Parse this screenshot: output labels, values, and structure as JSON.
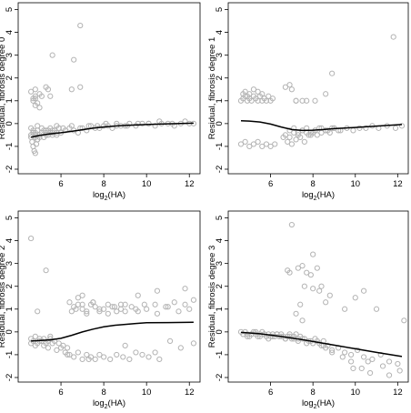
{
  "chart_data": [
    {
      "type": "scatter",
      "xlabel": "log2(HA)",
      "xlabel_base": "log",
      "xlabel_sub": "2",
      "xlabel_rest": "(HA)",
      "ylabel": "Residual, fibrosis degree 0",
      "xlim": [
        4.0,
        12.5
      ],
      "ylim": [
        -2.2,
        5.3
      ],
      "x_ticks": [
        6,
        8,
        10,
        12
      ],
      "y_ticks": [
        -2,
        -1,
        0,
        1,
        2,
        3,
        4,
        5
      ],
      "point_color": "#b3b3b3",
      "line_color": "#000000",
      "smooth_line": {
        "x": [
          4.6,
          5.0,
          5.5,
          6.0,
          6.5,
          7.0,
          7.5,
          8.0,
          8.5,
          9.0,
          10.0,
          11.0,
          12.2
        ],
        "y": [
          -0.6,
          -0.52,
          -0.45,
          -0.4,
          -0.34,
          -0.27,
          -0.2,
          -0.15,
          -0.11,
          -0.08,
          -0.04,
          -0.01,
          0.02
        ]
      },
      "points": {
        "x": [
          4.6,
          4.65,
          4.7,
          4.75,
          4.8,
          4.85,
          4.9,
          4.6,
          4.7,
          4.8,
          4.9,
          5.0,
          5.1,
          5.2,
          5.3,
          5.4,
          5.5,
          5.6,
          5.7,
          5.8,
          5.9,
          4.7,
          4.8,
          4.9,
          5.0,
          5.3,
          5.4,
          5.6,
          5.8,
          6.0,
          6.2,
          6.4,
          6.6,
          6.8,
          7.0,
          7.2,
          7.4,
          7.6,
          7.8,
          8.0,
          8.2,
          8.4,
          8.6,
          8.8,
          9.0,
          9.2,
          9.5,
          9.8,
          10.1,
          10.4,
          10.7,
          11.0,
          11.3,
          11.6,
          12.0,
          12.2,
          4.6,
          4.7,
          4.8,
          4.9,
          5.1,
          5.3,
          5.5,
          5.8,
          6.1,
          6.5,
          6.9,
          7.3,
          7.7,
          8.1,
          8.6,
          9.1,
          9.6,
          10.1,
          10.6,
          11.2,
          11.8,
          5.2,
          5.6,
          5.9,
          4.6,
          4.8,
          5.0,
          5.4,
          5.5,
          6.5,
          6.9,
          4.7,
          4.8,
          4.8,
          4.9,
          5.0
        ],
        "y": [
          -0.6,
          -0.8,
          -1.0,
          -1.2,
          -1.3,
          -0.9,
          -0.7,
          -0.5,
          -0.4,
          -0.6,
          -0.3,
          -0.5,
          -0.4,
          -0.6,
          -0.5,
          -0.3,
          -0.4,
          -0.5,
          -0.3,
          -0.4,
          -0.2,
          -0.4,
          -0.5,
          -0.7,
          -0.6,
          -0.4,
          -0.5,
          -0.3,
          -0.5,
          -0.4,
          -0.3,
          -0.2,
          -0.3,
          -0.4,
          -0.2,
          -0.3,
          -0.1,
          -0.2,
          -0.2,
          -0.1,
          -0.1,
          -0.2,
          0.0,
          -0.1,
          -0.1,
          0.0,
          -0.1,
          0.0,
          0.0,
          -0.1,
          0.0,
          0.0,
          -0.1,
          0.0,
          0.0,
          0.0,
          -0.2,
          -0.3,
          -0.4,
          -0.1,
          -0.2,
          -0.3,
          -0.2,
          -0.1,
          -0.2,
          -0.1,
          -0.2,
          -0.1,
          -0.1,
          0.0,
          -0.1,
          -0.1,
          0.0,
          0.0,
          0.1,
          0.0,
          0.1,
          -0.3,
          -0.4,
          -0.2,
          1.4,
          1.5,
          1.3,
          1.5,
          1.2,
          1.5,
          1.6,
          1.0,
          0.8,
          1.1,
          0.9,
          0.7
        ],
        "x_extra": [
          5.6,
          6.6,
          6.9,
          5.3,
          5.1,
          4.7,
          4.8
        ],
        "y_extra": [
          3.0,
          2.8,
          4.3,
          1.6,
          1.2,
          1.1,
          1.2
        ]
      }
    },
    {
      "type": "scatter",
      "xlabel": "log2(HA)",
      "xlabel_base": "log",
      "xlabel_sub": "2",
      "xlabel_rest": "(HA)",
      "ylabel": "Residual, fibrosis degree 1",
      "xlim": [
        4.0,
        12.5
      ],
      "ylim": [
        -2.2,
        5.3
      ],
      "x_ticks": [
        6,
        8,
        10,
        12
      ],
      "y_ticks": [
        -2,
        -1,
        0,
        1,
        2,
        3,
        4,
        5
      ],
      "point_color": "#b3b3b3",
      "line_color": "#000000",
      "smooth_line": {
        "x": [
          4.6,
          5.0,
          5.5,
          6.0,
          6.5,
          7.0,
          7.5,
          8.0,
          8.5,
          9.0,
          10.0,
          11.0,
          12.2
        ],
        "y": [
          0.12,
          0.11,
          0.07,
          -0.02,
          -0.15,
          -0.26,
          -0.3,
          -0.29,
          -0.26,
          -0.22,
          -0.17,
          -0.11,
          -0.04
        ]
      },
      "points": {
        "x": [
          4.6,
          4.7,
          4.8,
          4.9,
          5.0,
          5.1,
          5.2,
          5.3,
          5.4,
          5.5,
          5.6,
          5.7,
          5.8,
          5.9,
          6.0,
          6.1,
          4.7,
          4.8,
          4.9,
          5.0,
          5.2,
          5.4,
          5.6,
          4.6,
          4.8,
          5.0,
          5.2,
          5.4,
          5.6,
          5.8,
          6.0,
          6.2,
          6.6,
          6.8,
          7.0,
          7.2,
          7.4,
          7.6,
          7.8,
          8.0,
          8.2,
          8.4,
          8.6,
          8.8,
          9.0,
          9.3,
          9.6,
          9.9,
          10.2,
          10.5,
          10.8,
          11.1,
          11.5,
          11.9,
          12.2,
          6.9,
          7.1,
          7.3,
          7.5,
          7.7,
          7.9,
          8.1,
          8.3,
          8.6,
          8.9,
          9.2,
          6.7,
          6.9,
          7.1,
          7.3,
          7.5,
          7.7,
          7.9,
          8.1,
          8.4,
          8.7,
          9.0,
          7.0,
          7.2,
          8.1,
          8.6,
          6.7,
          6.9,
          7.2,
          8.9,
          11.8,
          7.5,
          7.7
        ],
        "y": [
          1.0,
          1.1,
          1.2,
          1.0,
          1.1,
          1.0,
          1.2,
          1.1,
          1.0,
          1.2,
          1.0,
          1.1,
          1.0,
          1.2,
          1.0,
          1.1,
          1.3,
          1.4,
          1.2,
          1.3,
          1.5,
          1.4,
          1.3,
          -0.9,
          -0.8,
          -1.0,
          -0.9,
          -0.8,
          -1.0,
          -0.9,
          -1.0,
          -0.9,
          -0.6,
          -0.8,
          -0.9,
          -0.7,
          -0.6,
          -0.8,
          -0.5,
          -0.4,
          -0.5,
          -0.4,
          -0.3,
          -0.4,
          -0.2,
          -0.3,
          -0.2,
          -0.3,
          -0.2,
          -0.2,
          -0.1,
          -0.2,
          -0.1,
          -0.2,
          -0.1,
          -0.3,
          -0.2,
          -0.4,
          -0.3,
          -0.2,
          -0.4,
          -0.3,
          -0.2,
          -0.3,
          -0.2,
          -0.3,
          -0.5,
          -0.6,
          -0.4,
          -0.5,
          -0.3,
          -0.4,
          -0.5,
          -0.3,
          -0.2,
          -0.3,
          -0.2,
          1.5,
          1.0,
          1.0,
          1.3,
          1.6,
          1.7,
          1.0,
          2.2,
          3.8,
          1.0,
          1.0
        ],
        "x_extra": [],
        "y_extra": []
      }
    },
    {
      "type": "scatter",
      "xlabel": "log2(HA)",
      "xlabel_base": "log",
      "xlabel_sub": "2",
      "xlabel_rest": "(HA)",
      "ylabel": "Residual, fibrosis degree 2",
      "xlim": [
        4.0,
        12.5
      ],
      "ylim": [
        -2.2,
        5.3
      ],
      "x_ticks": [
        6,
        8,
        10,
        12
      ],
      "y_ticks": [
        -2,
        -1,
        0,
        1,
        2,
        3,
        4,
        5
      ],
      "point_color": "#b3b3b3",
      "line_color": "#000000",
      "smooth_line": {
        "x": [
          4.6,
          5.5,
          6.0,
          6.5,
          7.0,
          7.5,
          8.0,
          8.5,
          9.0,
          9.5,
          10.0,
          11.0,
          12.2
        ],
        "y": [
          -0.4,
          -0.35,
          -0.28,
          -0.15,
          0.0,
          0.12,
          0.22,
          0.29,
          0.33,
          0.37,
          0.4,
          0.41,
          0.42
        ]
      },
      "points": {
        "x": [
          4.6,
          4.7,
          4.8,
          4.9,
          5.0,
          5.1,
          5.2,
          5.3,
          5.4,
          5.5,
          5.7,
          5.9,
          6.1,
          6.3,
          4.6,
          4.8,
          5.0,
          5.2,
          5.4,
          5.6,
          5.8,
          6.0,
          6.2,
          6.4,
          6.6,
          6.8,
          7.0,
          7.2,
          7.4,
          7.6,
          7.8,
          8.0,
          8.3,
          8.6,
          8.9,
          9.2,
          9.5,
          9.8,
          10.1,
          10.4,
          6.4,
          6.6,
          6.8,
          7.0,
          7.2,
          7.4,
          7.6,
          7.8,
          8.0,
          8.2,
          8.4,
          8.6,
          8.8,
          9.0,
          9.3,
          9.6,
          10.0,
          10.4,
          10.9,
          11.3,
          11.8,
          12.2,
          6.5,
          6.7,
          7.0,
          7.2,
          7.5,
          7.8,
          8.2,
          8.5,
          9.0,
          9.5,
          9.9,
          10.5,
          11.0,
          11.5,
          12.0,
          4.6,
          5.3,
          4.9,
          5.5,
          6.8,
          7.0,
          7.5,
          8.8,
          9.6,
          10.5,
          11.1,
          11.6
        ],
        "y": [
          -0.3,
          -0.4,
          -0.2,
          -0.5,
          -0.3,
          -0.4,
          -0.3,
          -0.5,
          -0.4,
          -0.3,
          -0.4,
          -0.5,
          -0.6,
          -0.7,
          -0.5,
          -0.6,
          -0.4,
          -0.6,
          -0.7,
          -0.5,
          -0.8,
          -0.7,
          -0.9,
          -1.0,
          -1.1,
          -0.9,
          -1.2,
          -1.0,
          -1.1,
          -1.2,
          -1.0,
          -1.1,
          -1.2,
          -1.0,
          -1.1,
          -1.2,
          -0.9,
          -1.0,
          -1.1,
          -0.9,
          1.3,
          1.1,
          1.2,
          1.0,
          0.9,
          1.2,
          1.1,
          0.9,
          1.0,
          1.2,
          1.1,
          0.9,
          1.0,
          1.2,
          1.1,
          0.9,
          1.0,
          1.2,
          1.1,
          1.3,
          1.2,
          1.4,
          0.9,
          1.0,
          1.2,
          0.8,
          1.3,
          1.0,
          0.8,
          1.1,
          0.9,
          1.0,
          1.2,
          0.8,
          1.1,
          0.9,
          1.0,
          4.1,
          2.7,
          0.9,
          -0.2,
          1.5,
          1.6,
          1.3,
          1.2,
          1.6,
          1.8,
          -0.4,
          -0.7
        ],
        "x_extra": [
          10.6,
          12.2,
          9.0,
          11.8,
          6.3,
          7.3
        ],
        "y_extra": [
          -1.2,
          -0.5,
          -0.6,
          1.9,
          -1.0,
          -1.2
        ]
      }
    },
    {
      "type": "scatter",
      "xlabel": "log2(HA)",
      "xlabel_base": "log",
      "xlabel_sub": "2",
      "xlabel_rest": "(HA)",
      "ylabel": "Residual, fibrosis degree 3",
      "xlim": [
        4.0,
        12.5
      ],
      "ylim": [
        -2.2,
        5.3
      ],
      "x_ticks": [
        6,
        8,
        10,
        12
      ],
      "y_ticks": [
        -2,
        -1,
        0,
        1,
        2,
        3,
        4,
        5
      ],
      "point_color": "#b3b3b3",
      "line_color": "#000000",
      "smooth_line": {
        "x": [
          4.6,
          5.5,
          6.0,
          6.5,
          7.0,
          7.5,
          8.0,
          8.5,
          9.0,
          10.0,
          11.0,
          12.2
        ],
        "y": [
          -0.02,
          -0.08,
          -0.14,
          -0.2,
          -0.27,
          -0.34,
          -0.42,
          -0.5,
          -0.58,
          -0.74,
          -0.9,
          -1.08
        ]
      },
      "points": {
        "x": [
          4.6,
          4.7,
          4.8,
          4.9,
          5.0,
          5.1,
          5.2,
          5.3,
          5.4,
          5.5,
          5.6,
          5.7,
          5.8,
          5.9,
          6.0,
          6.1,
          6.2,
          6.3,
          6.4,
          6.5,
          6.6,
          6.7,
          6.8,
          6.9,
          7.0,
          7.1,
          7.2,
          7.3,
          7.4,
          4.7,
          4.9,
          5.1,
          5.3,
          5.5,
          5.7,
          5.9,
          6.1,
          6.3,
          6.5,
          6.7,
          6.9,
          7.1,
          7.3,
          7.5,
          7.7,
          7.9,
          8.1,
          8.3,
          8.5,
          8.7,
          7.6,
          7.8,
          8.0,
          8.2,
          8.4,
          8.6,
          8.9,
          9.2,
          9.5,
          9.8,
          10.1,
          10.4,
          10.8,
          11.2,
          11.6,
          12.0,
          6.8,
          7.0,
          7.3,
          7.5,
          7.7,
          7.9,
          8.0,
          8.2,
          8.4,
          8.6,
          8.8,
          9.5,
          10.0,
          10.4,
          11.0,
          12.3,
          6.9,
          7.4,
          7.6,
          8.0,
          8.3,
          9.8,
          10.3,
          10.7,
          11.3,
          8.5,
          8.9,
          9.4,
          9.9,
          10.6,
          11.6,
          12.1,
          7.2,
          7.5
        ],
        "y": [
          0.0,
          -0.1,
          0.0,
          -0.1,
          -0.2,
          -0.1,
          0.0,
          -0.1,
          -0.2,
          -0.1,
          0.0,
          -0.1,
          -0.2,
          -0.1,
          -0.2,
          -0.1,
          -0.2,
          -0.1,
          -0.2,
          -0.1,
          -0.2,
          -0.3,
          -0.2,
          -0.1,
          -0.3,
          -0.2,
          -0.1,
          -0.3,
          -0.2,
          -0.1,
          -0.2,
          -0.1,
          0.0,
          -0.2,
          -0.1,
          -0.3,
          -0.2,
          -0.1,
          -0.2,
          -0.3,
          -0.2,
          -0.3,
          -0.4,
          -0.3,
          -0.5,
          -0.4,
          -0.3,
          -0.5,
          -0.4,
          -0.6,
          -0.3,
          -0.4,
          -0.5,
          -0.4,
          -0.6,
          -0.7,
          -0.8,
          -0.7,
          -0.9,
          -1.0,
          -0.8,
          -1.1,
          -1.2,
          -1.0,
          -1.3,
          -1.4,
          2.7,
          4.7,
          2.8,
          2.9,
          2.6,
          2.5,
          1.9,
          2.8,
          2.0,
          1.3,
          1.6,
          1.0,
          1.5,
          1.8,
          1.0,
          0.5,
          2.6,
          1.2,
          2.0,
          3.4,
          1.8,
          -1.3,
          -1.6,
          -1.8,
          -1.5,
          -0.6,
          -0.9,
          -1.1,
          -1.6,
          -1.3,
          -1.9,
          -1.7,
          0.8,
          0.5
        ],
        "x_extra": [],
        "y_extra": []
      }
    }
  ]
}
